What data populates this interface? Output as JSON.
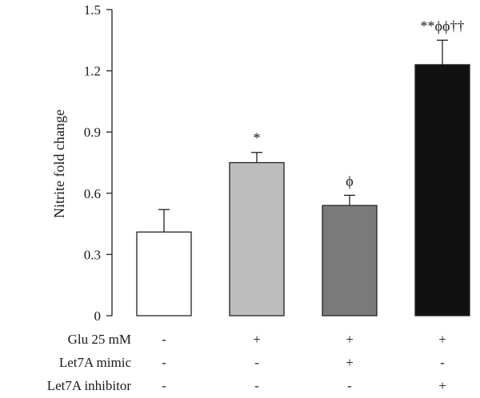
{
  "chart_data": {
    "type": "bar",
    "title": "",
    "xlabel": "",
    "ylabel": "Nitrite fold change",
    "ylim": [
      0,
      1.5
    ],
    "yticks": [
      "0",
      "0.3",
      "0.6",
      "0.9",
      "1.2",
      "1.5"
    ],
    "grid": false,
    "values": [
      0.41,
      0.75,
      0.54,
      1.23
    ],
    "errors": [
      0.11,
      0.05,
      0.05,
      0.12
    ],
    "colors": [
      "#ffffff",
      "#bdbdbd",
      "#7a7a7a",
      "#111111"
    ],
    "annotations": [
      "",
      "*",
      "ϕ",
      "**ϕϕ††"
    ],
    "conditions": [
      {
        "label": "Glu 25 mM",
        "marks": [
          "-",
          "+",
          "+",
          "+"
        ]
      },
      {
        "label": "Let7A mimic",
        "marks": [
          "-",
          "-",
          "+",
          "-"
        ]
      },
      {
        "label": "Let7A inhibitor",
        "marks": [
          "-",
          "-",
          "-",
          "+"
        ]
      }
    ]
  }
}
